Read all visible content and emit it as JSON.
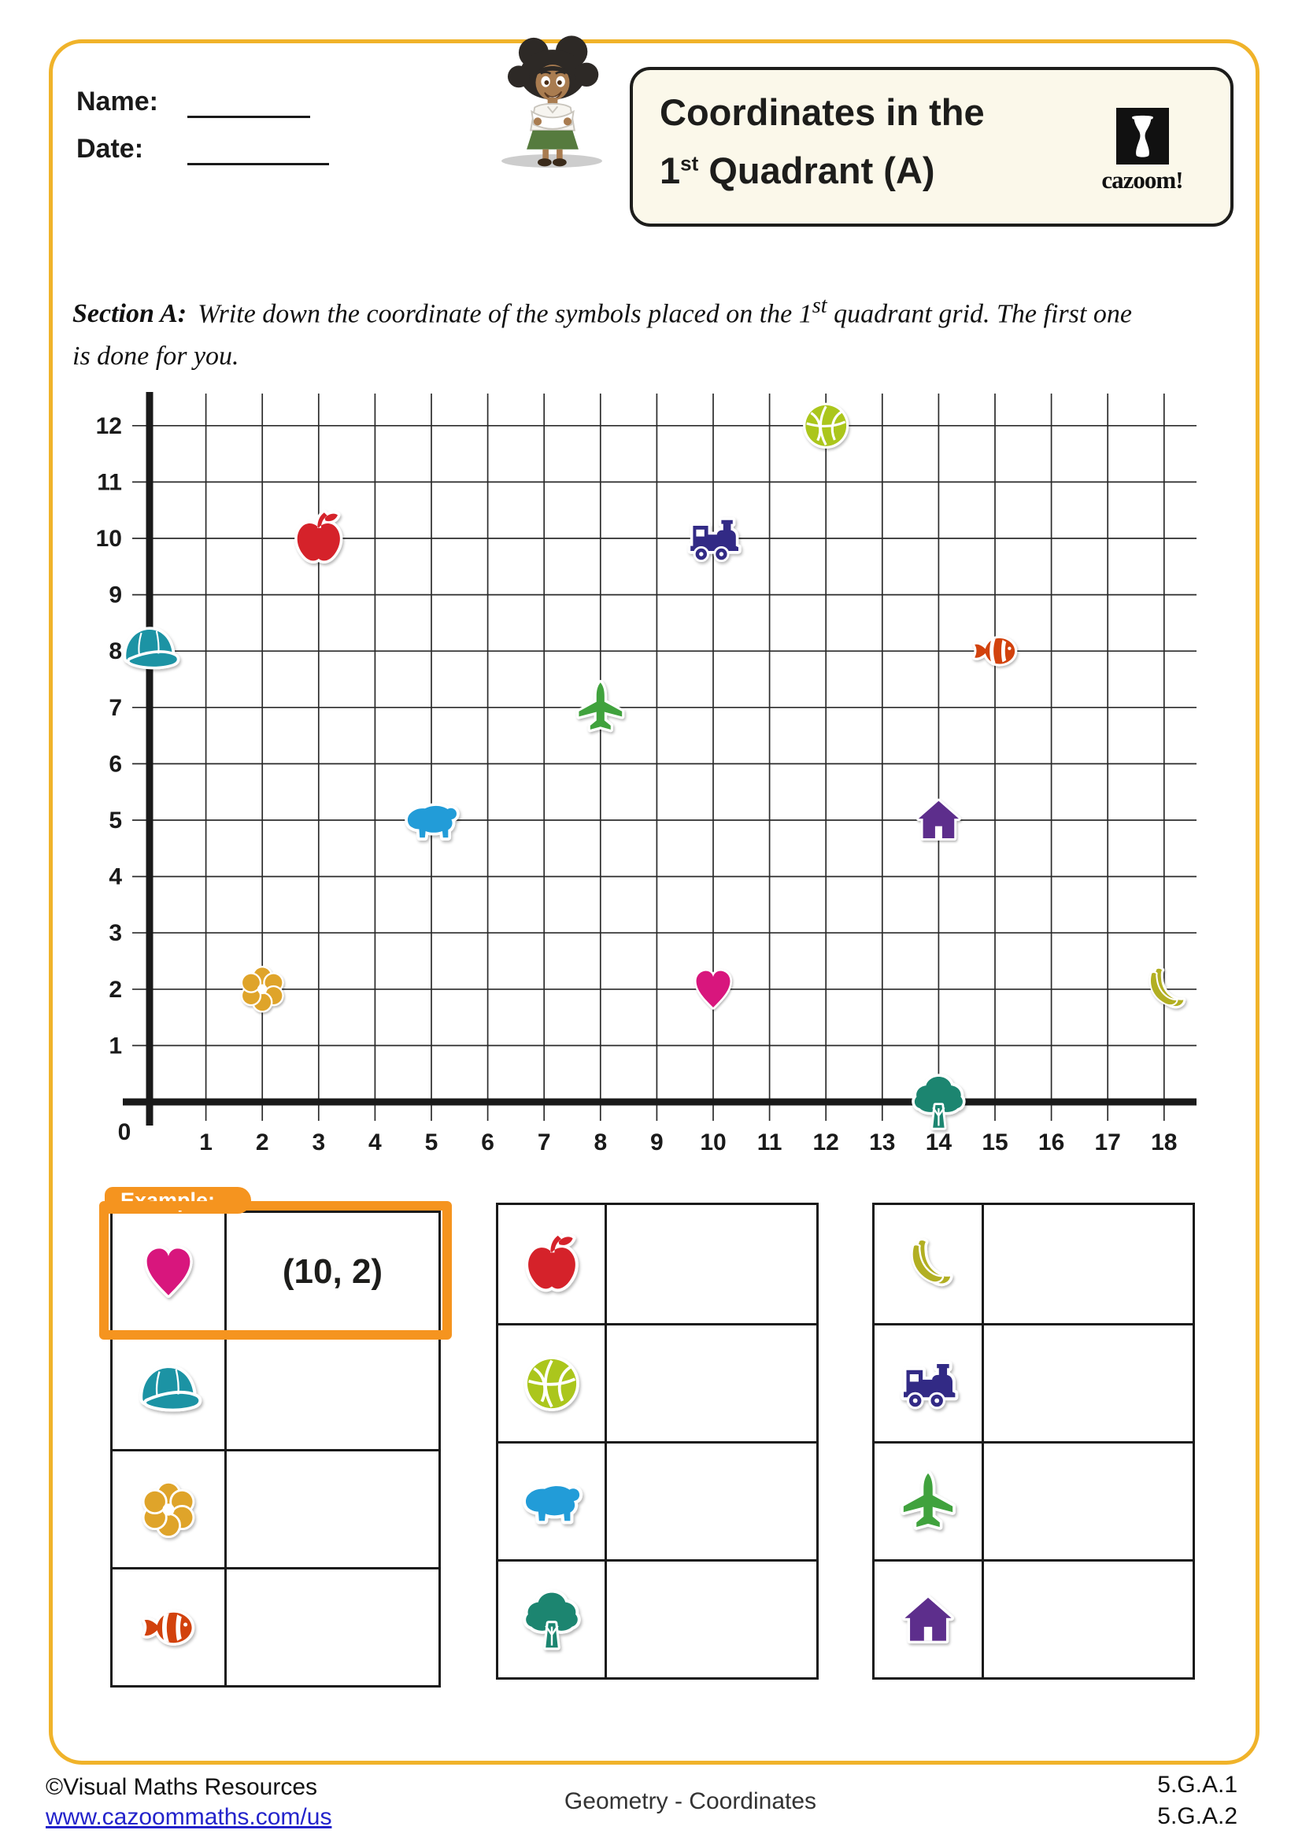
{
  "header": {
    "name_label": "Name:",
    "date_label": "Date:",
    "title_line1": "Coordinates in the",
    "title_line2a": "1",
    "title_line2_sup": "st",
    "title_line2b": " Quadrant (A)",
    "logo_text": "cazoom!"
  },
  "section_a": {
    "label": "Section A:",
    "text1a": "Write down the coordinate of the symbols placed on the 1",
    "text1_sup": "st",
    "text1b": " quadrant grid. The first one",
    "line2": "is done for you."
  },
  "grid": {
    "x_min": 0,
    "x_max": 18,
    "y_min": 0,
    "y_max": 12,
    "origin_label": "0",
    "points": [
      {
        "symbol": "cap",
        "x": 0,
        "y": 8
      },
      {
        "symbol": "flower",
        "x": 2,
        "y": 2
      },
      {
        "symbol": "apple",
        "x": 3,
        "y": 10
      },
      {
        "symbol": "bear",
        "x": 5,
        "y": 5
      },
      {
        "symbol": "airplane",
        "x": 8,
        "y": 7
      },
      {
        "symbol": "train",
        "x": 10,
        "y": 10
      },
      {
        "symbol": "heart",
        "x": 10,
        "y": 2
      },
      {
        "symbol": "basketball",
        "x": 12,
        "y": 12
      },
      {
        "symbol": "house",
        "x": 14,
        "y": 5
      },
      {
        "symbol": "tree",
        "x": 14,
        "y": 0
      },
      {
        "symbol": "clownfish",
        "x": 15,
        "y": 8
      },
      {
        "symbol": "bananas",
        "x": 18,
        "y": 2
      }
    ]
  },
  "tables": {
    "example_label": "Example:",
    "left": {
      "rows": [
        {
          "symbol": "heart",
          "answer": "(10, 2)"
        },
        {
          "symbol": "cap",
          "answer": ""
        },
        {
          "symbol": "flower",
          "answer": ""
        },
        {
          "symbol": "clownfish",
          "answer": ""
        }
      ]
    },
    "middle": {
      "rows": [
        {
          "symbol": "apple",
          "answer": ""
        },
        {
          "symbol": "basketball",
          "answer": ""
        },
        {
          "symbol": "bear",
          "answer": ""
        },
        {
          "symbol": "tree",
          "answer": ""
        }
      ]
    },
    "right": {
      "rows": [
        {
          "symbol": "bananas",
          "answer": ""
        },
        {
          "symbol": "train",
          "answer": ""
        },
        {
          "symbol": "airplane",
          "answer": ""
        },
        {
          "symbol": "house",
          "answer": ""
        }
      ]
    }
  },
  "footer": {
    "copyright": "©Visual Maths Resources",
    "website": "www.cazoommaths.com/us",
    "center": "Geometry - Coordinates",
    "standard1": "5.G.A.1",
    "standard2": "5.G.A.2"
  },
  "colors": {
    "heart": "#D8127D",
    "cap": "#1E93A4",
    "flower": "#DFA42C",
    "clownfish": "#D2430F",
    "apple": "#D5232B",
    "basketball": "#ABC61E",
    "bear": "#219CD8",
    "tree": "#1A8570",
    "bananas": "#B2AF23",
    "train": "#322B85",
    "airplane": "#3FA23D",
    "house": "#5D2E8C",
    "example_orange": "#F5941F",
    "frame_yellow": "#F0B32A",
    "link_blue": "#2323CB"
  }
}
